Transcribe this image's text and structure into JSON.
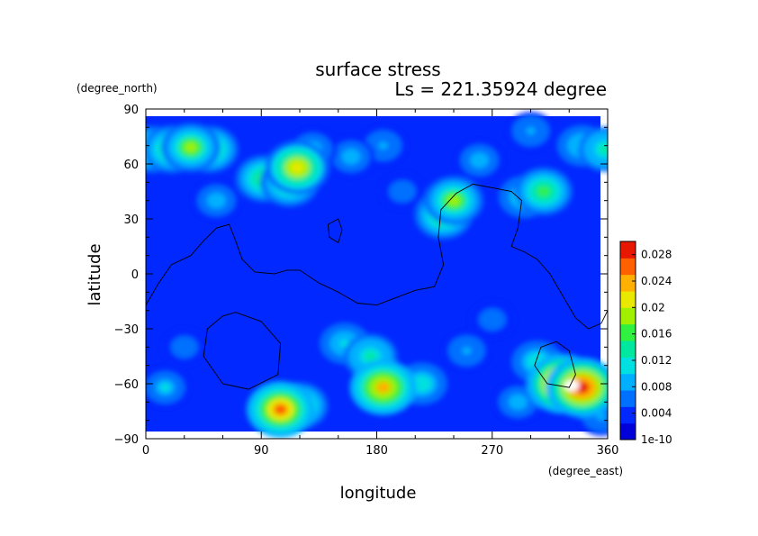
{
  "chart_data": {
    "type": "heatmap",
    "title": "surface stress",
    "subtitle": "Ls = 221.35924 degree",
    "xlabel": "longitude",
    "ylabel": "latitude",
    "xunit": "(degree_east)",
    "yunit": "(degree_north)",
    "xlim": [
      0,
      360
    ],
    "ylim": [
      -90,
      90
    ],
    "xticks": [
      "0",
      "90",
      "180",
      "270",
      "360"
    ],
    "yticks": [
      "90",
      "60",
      "30",
      "0",
      "−30",
      "−60",
      "−90"
    ],
    "colorbar": {
      "labels": [
        "0.028",
        "0.024",
        "0.02",
        "0.016",
        "0.012",
        "0.008",
        "0.004",
        "1e-10"
      ],
      "range": [
        0,
        0.03
      ],
      "colors": [
        "#0000d8",
        "#0028ff",
        "#0070ff",
        "#00b0ff",
        "#00e0e0",
        "#00e8a0",
        "#30f040",
        "#a0f000",
        "#e8e800",
        "#ffb000",
        "#ff6000",
        "#e81800"
      ]
    },
    "background_level": 0.0035,
    "hotspots": [
      {
        "lon": 5,
        "lat": 68,
        "value": 0.016
      },
      {
        "lon": 20,
        "lat": 68,
        "value": 0.017
      },
      {
        "lon": 35,
        "lat": 69,
        "value": 0.018
      },
      {
        "lon": 50,
        "lat": 68,
        "value": 0.016
      },
      {
        "lon": 118,
        "lat": 58,
        "value": 0.022
      },
      {
        "lon": 112,
        "lat": 50,
        "value": 0.018
      },
      {
        "lon": 92,
        "lat": 52,
        "value": 0.016
      },
      {
        "lon": 130,
        "lat": 68,
        "value": 0.01
      },
      {
        "lon": 160,
        "lat": 64,
        "value": 0.009
      },
      {
        "lon": 185,
        "lat": 70,
        "value": 0.008
      },
      {
        "lon": 340,
        "lat": 70,
        "value": 0.011
      },
      {
        "lon": 358,
        "lat": 68,
        "value": 0.014
      },
      {
        "lon": 240,
        "lat": 40,
        "value": 0.018
      },
      {
        "lon": 232,
        "lat": 32,
        "value": 0.017
      },
      {
        "lon": 310,
        "lat": 45,
        "value": 0.017
      },
      {
        "lon": 295,
        "lat": 42,
        "value": 0.012
      },
      {
        "lon": 260,
        "lat": 62,
        "value": 0.009
      },
      {
        "lon": 300,
        "lat": 78,
        "value": 0.008
      },
      {
        "lon": 55,
        "lat": 40,
        "value": 0.009
      },
      {
        "lon": 200,
        "lat": 45,
        "value": 0.007
      },
      {
        "lon": 185,
        "lat": -62,
        "value": 0.024
      },
      {
        "lon": 175,
        "lat": -45,
        "value": 0.014
      },
      {
        "lon": 155,
        "lat": -38,
        "value": 0.011
      },
      {
        "lon": 215,
        "lat": -60,
        "value": 0.012
      },
      {
        "lon": 105,
        "lat": -74,
        "value": 0.025
      },
      {
        "lon": 120,
        "lat": -72,
        "value": 0.016
      },
      {
        "lon": 325,
        "lat": -60,
        "value": 0.028
      },
      {
        "lon": 340,
        "lat": -62,
        "value": 0.028
      },
      {
        "lon": 305,
        "lat": -48,
        "value": 0.012
      },
      {
        "lon": 290,
        "lat": -70,
        "value": 0.009
      },
      {
        "lon": 15,
        "lat": -62,
        "value": 0.01
      },
      {
        "lon": 30,
        "lat": -40,
        "value": 0.007
      },
      {
        "lon": 250,
        "lat": -42,
        "value": 0.008
      },
      {
        "lon": 270,
        "lat": -25,
        "value": 0.007
      },
      {
        "lon": 355,
        "lat": -78,
        "value": 0.008
      }
    ],
    "saturated_region": {
      "lon": 332,
      "lat": -61,
      "note": "value above colorbar range"
    },
    "contour_lines": [
      [
        [
          0,
          -17
        ],
        [
          10,
          -5
        ],
        [
          20,
          5
        ],
        [
          35,
          10
        ],
        [
          45,
          18
        ],
        [
          55,
          25
        ],
        [
          65,
          27
        ],
        [
          70,
          18
        ],
        [
          75,
          8
        ],
        [
          85,
          1
        ],
        [
          100,
          0
        ],
        [
          110,
          2
        ],
        [
          120,
          2
        ],
        [
          135,
          -5
        ],
        [
          150,
          -10
        ],
        [
          165,
          -16
        ],
        [
          180,
          -17
        ],
        [
          195,
          -13
        ],
        [
          210,
          -9
        ],
        [
          225,
          -7
        ],
        [
          232,
          5
        ],
        [
          228,
          20
        ],
        [
          230,
          35
        ],
        [
          242,
          44
        ],
        [
          255,
          49
        ],
        [
          270,
          47
        ],
        [
          285,
          45
        ],
        [
          293,
          40
        ],
        [
          290,
          25
        ],
        [
          285,
          15
        ],
        [
          295,
          12
        ],
        [
          305,
          8
        ],
        [
          315,
          0
        ],
        [
          325,
          -12
        ],
        [
          335,
          -24
        ],
        [
          345,
          -30
        ],
        [
          355,
          -27
        ],
        [
          360,
          -20
        ]
      ],
      [
        [
          142,
          27
        ],
        [
          150,
          30
        ],
        [
          153,
          24
        ],
        [
          150,
          17
        ],
        [
          143,
          20
        ],
        [
          142,
          27
        ]
      ],
      [
        [
          70,
          -21
        ],
        [
          90,
          -26
        ],
        [
          105,
          -38
        ],
        [
          103,
          -55
        ],
        [
          80,
          -63
        ],
        [
          60,
          -60
        ],
        [
          45,
          -45
        ],
        [
          48,
          -30
        ],
        [
          60,
          -23
        ],
        [
          70,
          -21
        ]
      ],
      [
        [
          320,
          -37
        ],
        [
          330,
          -42
        ],
        [
          335,
          -55
        ],
        [
          330,
          -62
        ],
        [
          313,
          -60
        ],
        [
          303,
          -50
        ],
        [
          308,
          -40
        ],
        [
          320,
          -37
        ]
      ]
    ],
    "legend": "colorbar-right",
    "grid": false
  }
}
